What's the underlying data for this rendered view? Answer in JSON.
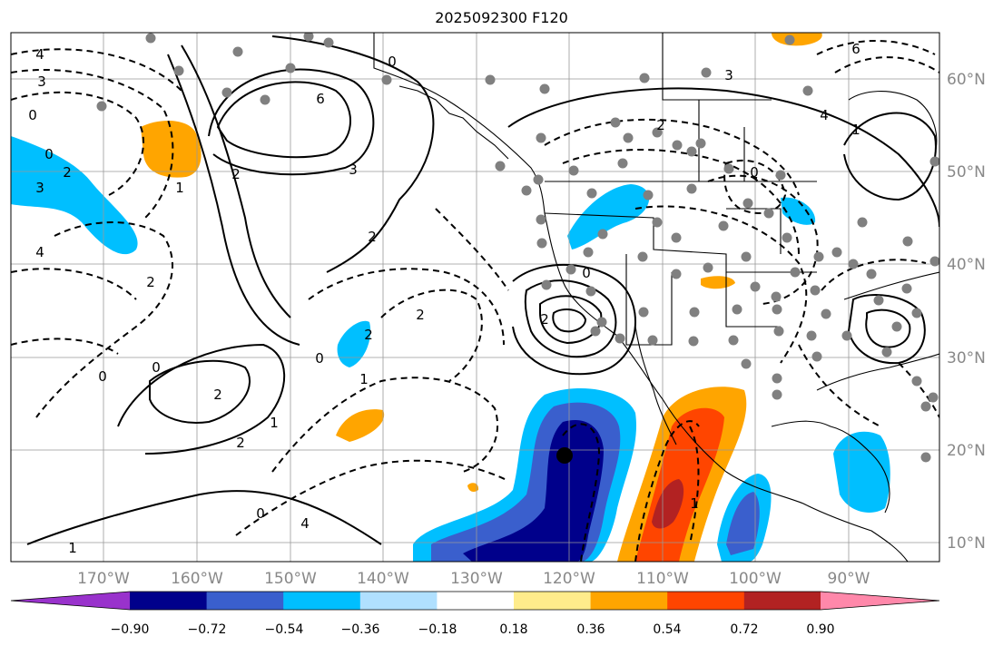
{
  "title": "2025092300 F120",
  "longitude_labels": [
    "170°W",
    "160°W",
    "150°W",
    "140°W",
    "130°W",
    "120°W",
    "110°W",
    "100°W",
    "90°W"
  ],
  "latitude_labels": [
    "60°N",
    "50°N",
    "40°N",
    "30°N",
    "20°N",
    "10°N"
  ],
  "colorbar": {
    "labels": [
      "−0.90",
      "−0.72",
      "−0.54",
      "−0.36",
      "−0.18",
      "0.18",
      "0.36",
      "0.54",
      "0.72",
      "0.90"
    ],
    "colors": [
      "#9932cc",
      "#00008b",
      "#3a5fcd",
      "#00bfff",
      "#b0e0ff",
      "#ffffff",
      "#ffec8b",
      "#ffa500",
      "#ff4500",
      "#b22222",
      "#ff88aa"
    ]
  },
  "contour_labels": [
    "4",
    "3",
    "0",
    "0",
    "2",
    "3",
    "4",
    "2",
    "1",
    "2",
    "6",
    "3",
    "2",
    "0",
    "2",
    "2",
    "1",
    "0",
    "2",
    "0",
    "1",
    "2",
    "0",
    "4",
    "3",
    "6",
    "1",
    "4",
    "2",
    "0",
    "2",
    "0",
    "1",
    "0",
    "1"
  ]
}
